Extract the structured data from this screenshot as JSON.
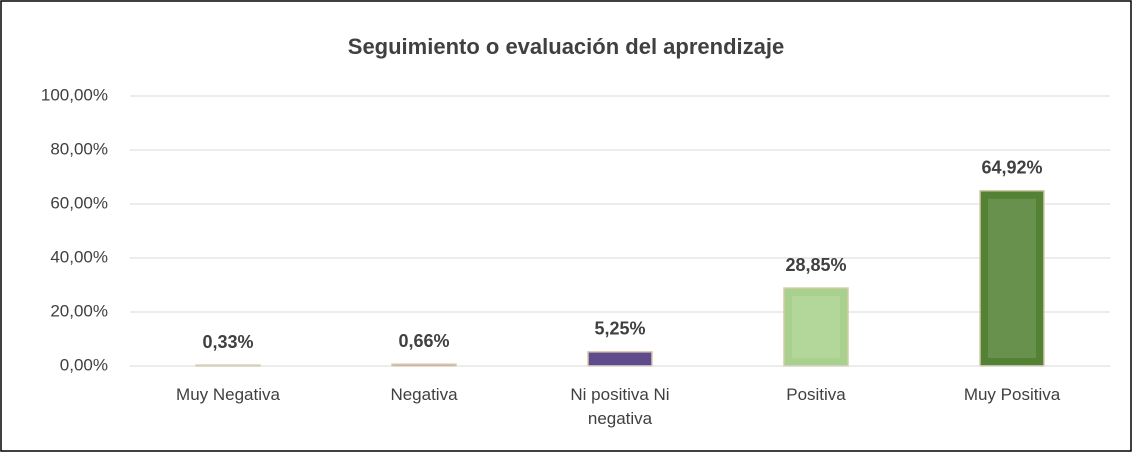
{
  "chart_data": {
    "type": "bar",
    "title": "Seguimiento o evaluación del aprendizaje",
    "categories": [
      "Muy Negativa",
      "Negativa",
      "Ni positiva Ni negativa",
      "Positiva",
      "Muy Positiva"
    ],
    "values": [
      0.33,
      0.66,
      5.25,
      28.85,
      64.92
    ],
    "value_labels": [
      "0,33%",
      "0,66%",
      "5,25%",
      "28,85%",
      "64,92%"
    ],
    "colors": [
      "#c0504d",
      "#c0504d",
      "#5f4b8b",
      "#a9d18e",
      "#548235"
    ],
    "ylim": [
      0,
      100
    ],
    "yticks": [
      {
        "value": 0,
        "label": "0,00%"
      },
      {
        "value": 20,
        "label": "20,00%"
      },
      {
        "value": 40,
        "label": "40,00%"
      },
      {
        "value": 60,
        "label": "60,00%"
      },
      {
        "value": 80,
        "label": "80,00%"
      },
      {
        "value": 100,
        "label": "100,00%"
      }
    ],
    "grid": true
  }
}
